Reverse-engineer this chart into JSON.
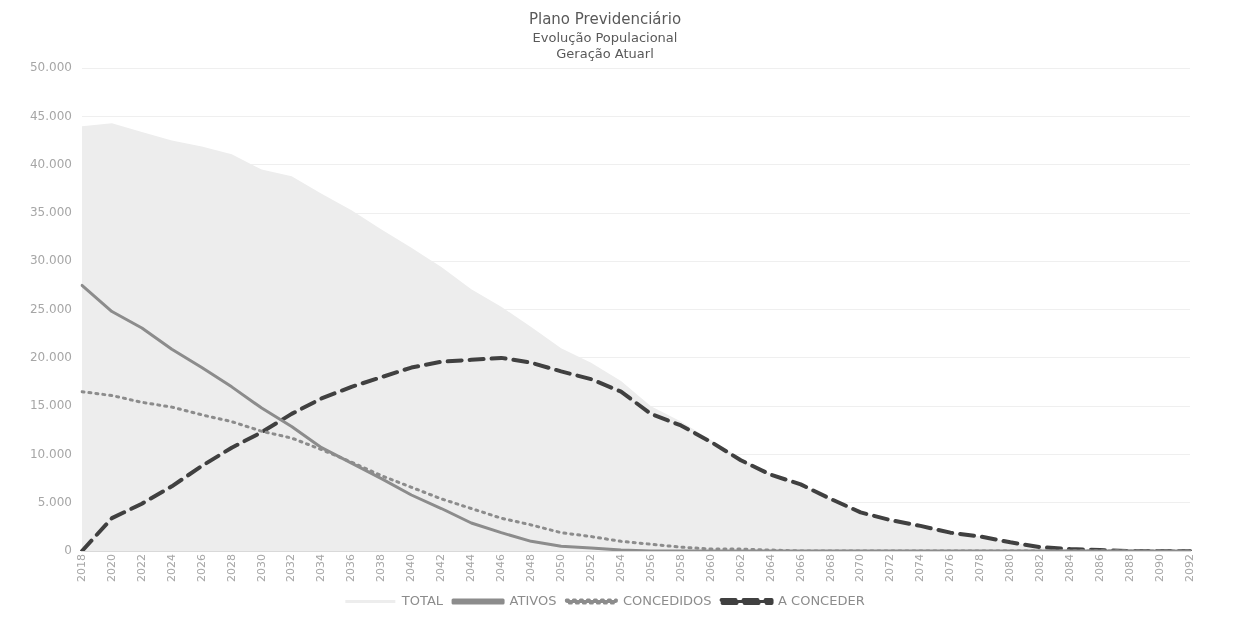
{
  "chart_data": {
    "type": "line",
    "title": "Plano Previdenciário",
    "subtitle": "Evolução Populacional\nGeração Atuarl",
    "categories": [
      "2018",
      "2020",
      "2022",
      "2024",
      "2026",
      "2028",
      "2030",
      "2032",
      "2034",
      "2036",
      "2038",
      "2040",
      "2042",
      "2044",
      "2046",
      "2048",
      "2050",
      "2052",
      "2054",
      "2056",
      "2058",
      "2060",
      "2062",
      "2064",
      "2066",
      "2068",
      "2070",
      "2072",
      "2074",
      "2076",
      "2078",
      "2080",
      "2082",
      "2084",
      "2086",
      "2088",
      "2090",
      "2092"
    ],
    "series": [
      {
        "name": "TOTAL",
        "type": "area",
        "color": "#ededed",
        "values": [
          44000,
          44300,
          43400,
          42500,
          41900,
          41100,
          39500,
          38800,
          37000,
          35300,
          33300,
          31400,
          29400,
          27100,
          25300,
          23200,
          21000,
          19500,
          17600,
          15000,
          13400,
          11500,
          9600,
          8000,
          6900,
          5400,
          4000,
          3200,
          2600,
          1900,
          1500,
          900,
          400,
          200,
          100,
          0,
          0,
          0
        ]
      },
      {
        "name": "ATIVOS",
        "color": "#8c8c8c",
        "line_style": "solid",
        "values": [
          27500,
          24800,
          23100,
          20900,
          19000,
          17000,
          14800,
          12900,
          10700,
          9100,
          7500,
          5800,
          4400,
          2900,
          1900,
          1000,
          500,
          300,
          100,
          0,
          0,
          0,
          0,
          0,
          0,
          0,
          0,
          0,
          0,
          0,
          0,
          0,
          0,
          0,
          0,
          0,
          0,
          0
        ]
      },
      {
        "name": "CONCEDIDOS",
        "color": "#8c8c8c",
        "line_style": "dotted",
        "values": [
          16500,
          16100,
          15400,
          14900,
          14100,
          13400,
          12400,
          11700,
          10500,
          9200,
          7800,
          6600,
          5400,
          4400,
          3400,
          2700,
          1900,
          1500,
          1000,
          700,
          400,
          200,
          200,
          100,
          0,
          0,
          0,
          0,
          0,
          0,
          0,
          0,
          0,
          0,
          0,
          0,
          0,
          0
        ]
      },
      {
        "name": "A CONCEDER",
        "color": "#404040",
        "line_style": "dashed",
        "values": [
          0,
          3400,
          4900,
          6700,
          8800,
          10700,
          12300,
          14200,
          15800,
          17000,
          18000,
          19000,
          19600,
          19800,
          20000,
          19500,
          18600,
          17800,
          16500,
          14200,
          13000,
          11300,
          9400,
          7900,
          6900,
          5400,
          4000,
          3200,
          2600,
          1900,
          1500,
          900,
          400,
          200,
          100,
          0,
          0,
          0
        ]
      }
    ],
    "ylim": [
      0,
      50000
    ],
    "yticks": [
      {
        "value": 0,
        "label": "0"
      },
      {
        "value": 5000,
        "label": "5.000"
      },
      {
        "value": 10000,
        "label": "10.000"
      },
      {
        "value": 15000,
        "label": "15.000"
      },
      {
        "value": 20000,
        "label": "20.000"
      },
      {
        "value": 25000,
        "label": "25.000"
      },
      {
        "value": 30000,
        "label": "30.000"
      },
      {
        "value": 35000,
        "label": "35.000"
      },
      {
        "value": 40000,
        "label": "40.000"
      },
      {
        "value": 45000,
        "label": "45.000"
      },
      {
        "value": 50000,
        "label": "50.000"
      }
    ],
    "grid": "y",
    "legend": "bottom",
    "marker": "none"
  }
}
